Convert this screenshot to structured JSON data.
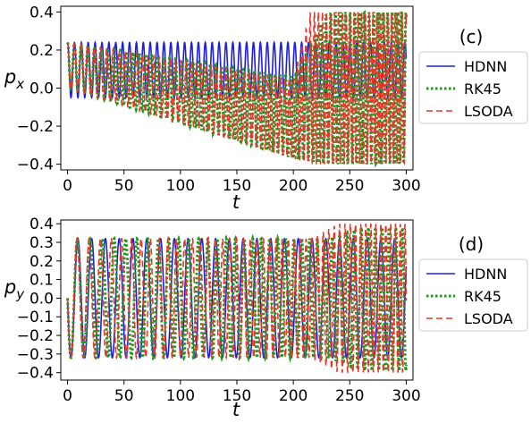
{
  "chart_data": [
    {
      "type": "line",
      "panel_label": "(c)",
      "xlabel": "t",
      "ylabel": "p_x",
      "xlim": [
        -6,
        306
      ],
      "ylim": [
        -0.43,
        0.43
      ],
      "xticks": [
        0,
        50,
        100,
        150,
        200,
        250,
        300
      ],
      "xtick_labels": [
        "0",
        "50",
        "100",
        "150",
        "200",
        "250",
        "300"
      ],
      "yticks": [
        -0.4,
        -0.2,
        0.0,
        0.2,
        0.4
      ],
      "ytick_labels": [
        "−0.4",
        "−0.2",
        "0.0",
        "0.2",
        "0.4"
      ],
      "grid": false,
      "legend_position": "right",
      "series": [
        {
          "name": "HDNN",
          "color": "#1f1fe0",
          "style": "solid",
          "description_of_shape": "steady oscillation, period about 6",
          "t_range": [
            0,
            300
          ],
          "period": 6.1,
          "upper_envelope": [
            [
              0,
              0.24
            ],
            [
              300,
              0.24
            ]
          ],
          "lower_envelope": [
            [
              0,
              -0.05
            ],
            [
              300,
              -0.05
            ]
          ]
        },
        {
          "name": "RK45",
          "color": "#1a9a1a",
          "style": "dotted",
          "t_range": [
            0,
            300
          ],
          "period": 6.1,
          "upper_envelope": [
            [
              0,
              0.24
            ],
            [
              200,
              0.06
            ],
            [
              230,
              0.4
            ],
            [
              300,
              0.4
            ]
          ],
          "lower_envelope": [
            [
              0,
              0.0
            ],
            [
              200,
              -0.37
            ],
            [
              230,
              -0.4
            ],
            [
              300,
              -0.4
            ]
          ]
        },
        {
          "name": "LSODA",
          "color": "#e8372b",
          "style": "dashed",
          "t_range": [
            0,
            300
          ],
          "period": 6.1,
          "upper_envelope": [
            [
              0,
              0.24
            ],
            [
              200,
              0.05
            ],
            [
              215,
              0.4
            ],
            [
              300,
              0.4
            ]
          ],
          "lower_envelope": [
            [
              0,
              0.0
            ],
            [
              200,
              -0.37
            ],
            [
              215,
              -0.4
            ],
            [
              300,
              -0.4
            ]
          ]
        }
      ]
    },
    {
      "type": "line",
      "panel_label": "(d)",
      "xlabel": "t",
      "ylabel": "p_y",
      "xlim": [
        -6,
        306
      ],
      "ylim": [
        -0.44,
        0.42
      ],
      "xticks": [
        0,
        50,
        100,
        150,
        200,
        250,
        300
      ],
      "xtick_labels": [
        "0",
        "50",
        "100",
        "150",
        "200",
        "250",
        "300"
      ],
      "yticks": [
        -0.4,
        -0.3,
        -0.2,
        -0.1,
        0.0,
        0.1,
        0.2,
        0.3,
        0.4
      ],
      "ytick_labels": [
        "−0.4",
        "−0.3",
        "−0.2",
        "−0.1",
        "0.0",
        "0.1",
        "0.2",
        "0.3",
        "0.4"
      ],
      "grid": false,
      "legend_position": "right",
      "series": [
        {
          "name": "HDNN",
          "color": "#1f1fe0",
          "style": "solid",
          "t_range": [
            0,
            300
          ],
          "period": 12.2,
          "upper_envelope": [
            [
              0,
              0.32
            ],
            [
              300,
              0.32
            ]
          ],
          "lower_envelope": [
            [
              0,
              -0.32
            ],
            [
              300,
              -0.32
            ]
          ]
        },
        {
          "name": "RK45",
          "color": "#1a9a1a",
          "style": "dotted",
          "t_range": [
            0,
            300
          ],
          "period": 11.8,
          "upper_envelope": [
            [
              0,
              0.32
            ],
            [
              230,
              0.32
            ],
            [
              260,
              0.38
            ],
            [
              300,
              0.38
            ]
          ],
          "lower_envelope": [
            [
              0,
              -0.32
            ],
            [
              230,
              -0.32
            ],
            [
              260,
              -0.39
            ],
            [
              300,
              -0.39
            ]
          ]
        },
        {
          "name": "LSODA",
          "color": "#e8372b",
          "style": "dashed",
          "t_range": [
            0,
            300
          ],
          "period": 11.5,
          "upper_envelope": [
            [
              0,
              0.32
            ],
            [
              215,
              0.32
            ],
            [
              240,
              0.4
            ],
            [
              300,
              0.4
            ]
          ],
          "lower_envelope": [
            [
              0,
              -0.32
            ],
            [
              215,
              -0.32
            ],
            [
              240,
              -0.4
            ],
            [
              300,
              -0.4
            ]
          ]
        }
      ]
    }
  ]
}
